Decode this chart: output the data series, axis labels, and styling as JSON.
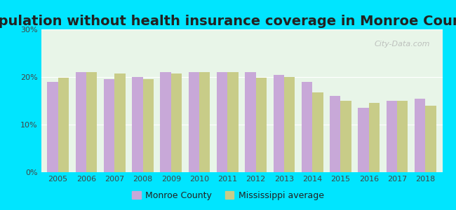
{
  "title": "Population without health insurance coverage in Monroe County",
  "years": [
    2005,
    2006,
    2007,
    2008,
    2009,
    2010,
    2011,
    2012,
    2013,
    2014,
    2015,
    2016,
    2017,
    2018
  ],
  "monroe_county": [
    19.0,
    21.0,
    19.5,
    20.0,
    21.0,
    21.0,
    21.0,
    21.0,
    20.5,
    19.0,
    16.0,
    13.5,
    15.0,
    15.5
  ],
  "ms_average": [
    19.8,
    21.0,
    20.8,
    19.5,
    20.8,
    21.0,
    21.0,
    19.8,
    20.0,
    16.8,
    15.0,
    14.5,
    15.0,
    14.0
  ],
  "monroe_color": "#c8a8d8",
  "ms_color": "#c8cc88",
  "background_outer": "#00e5ff",
  "background_inner": "#e8f5e8",
  "ylim": [
    0,
    30
  ],
  "yticks": [
    0,
    10,
    20,
    30
  ],
  "ytick_labels": [
    "0%",
    "10%",
    "20%",
    "30%"
  ],
  "legend_monroe": "Monroe County",
  "legend_ms": "Mississippi average",
  "watermark": "City-Data.com",
  "title_fontsize": 14,
  "bar_width": 0.38
}
